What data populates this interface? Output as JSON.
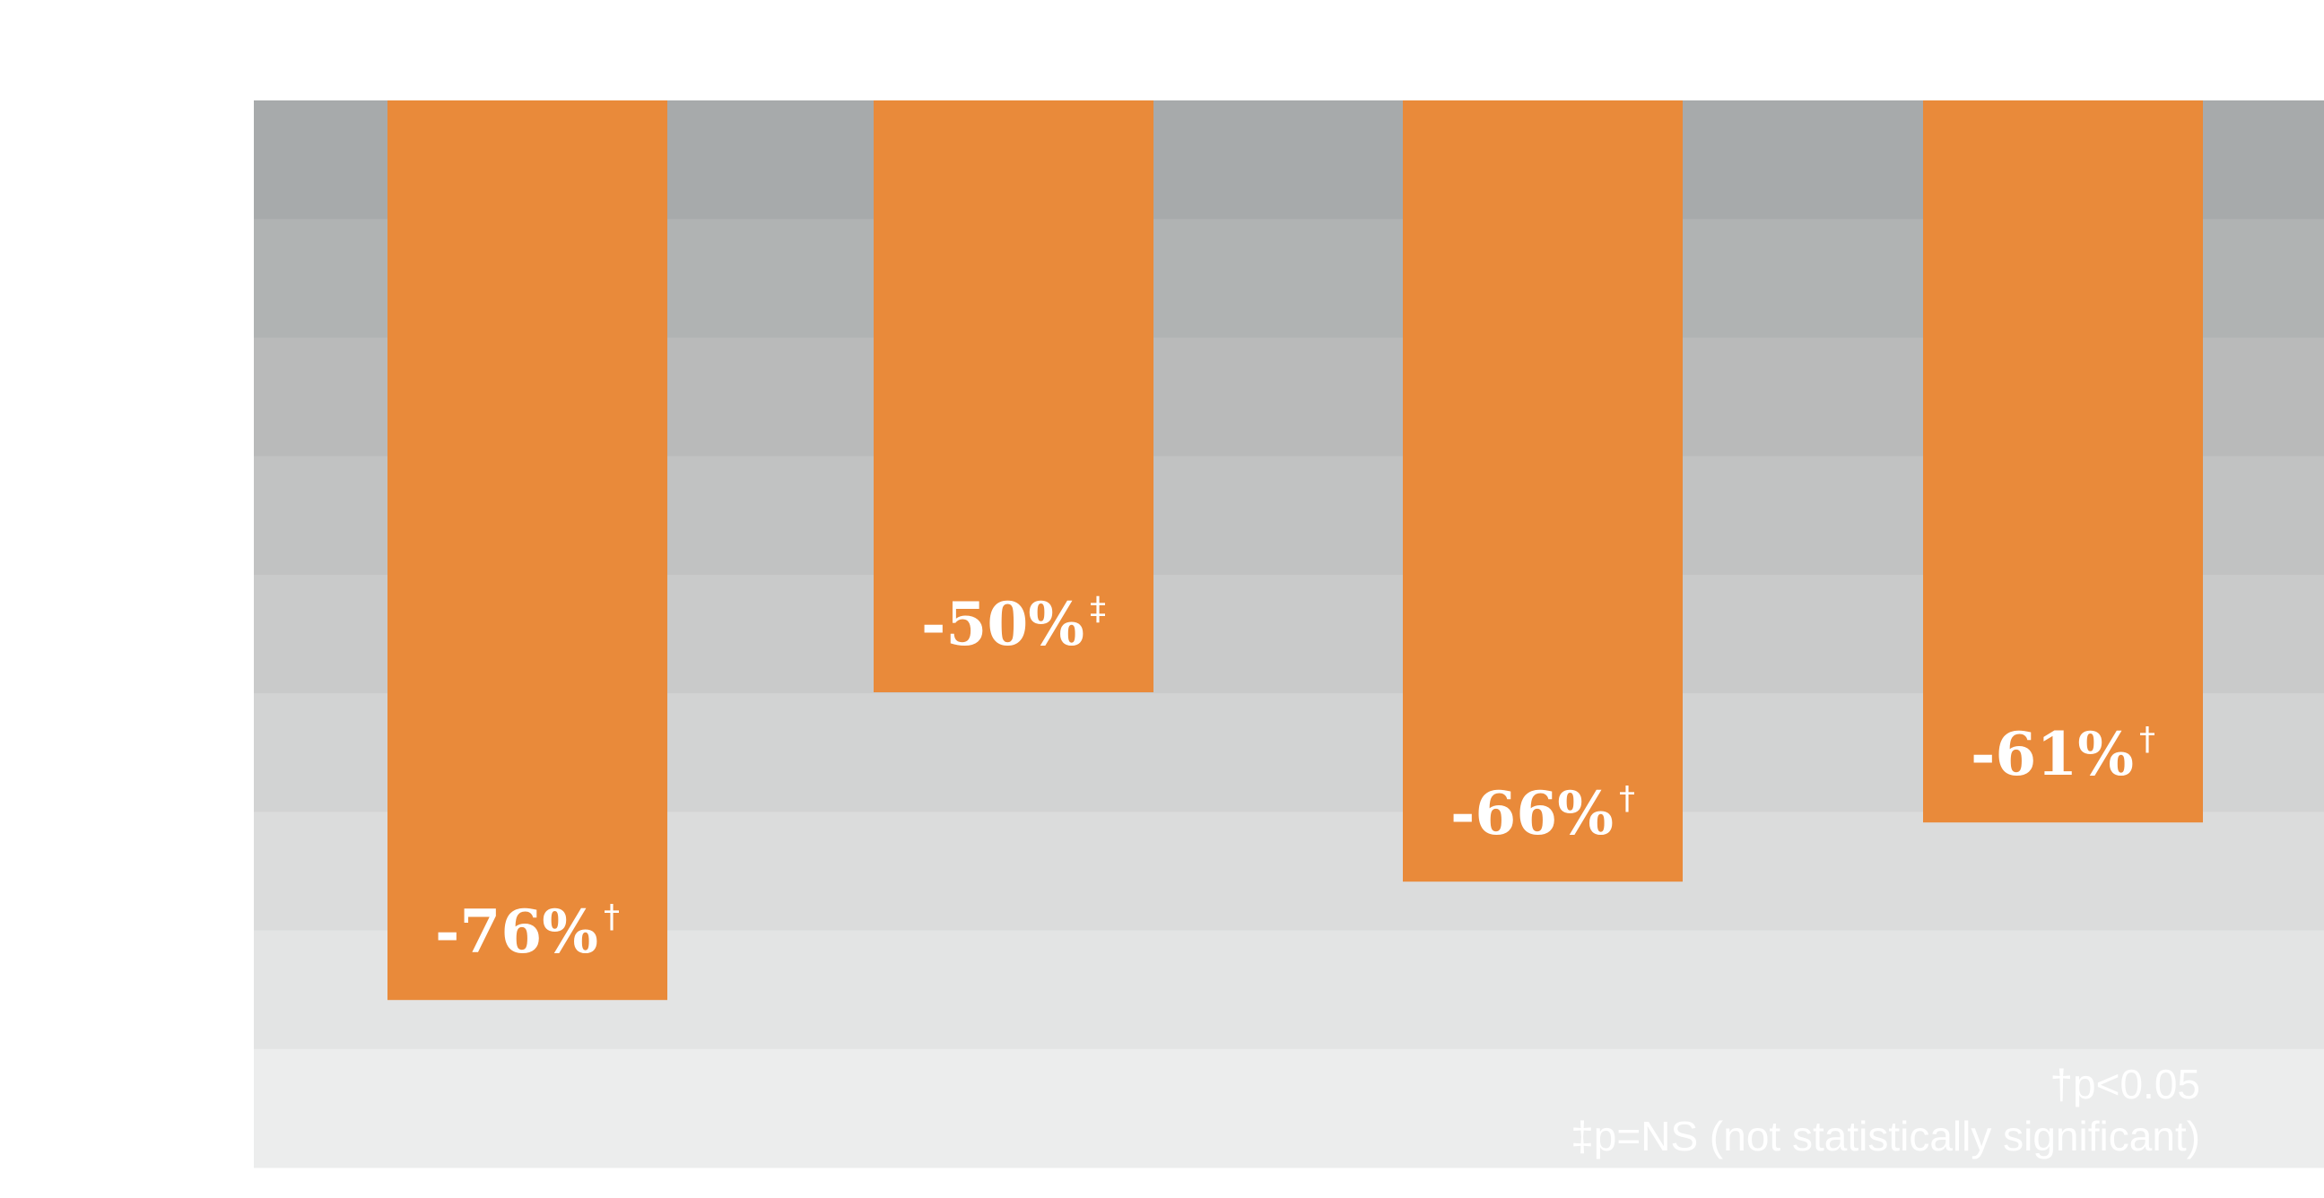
{
  "chart_data": {
    "type": "bar",
    "categories": [
      "",
      "",
      "",
      ""
    ],
    "values": [
      -76,
      -50,
      -66,
      -61
    ],
    "value_labels": [
      "-76%",
      "-50%",
      "-66%",
      "-61%"
    ],
    "significance_marks": [
      "†",
      "‡",
      "†",
      "†"
    ],
    "title": "",
    "xlabel": "",
    "ylabel": "",
    "ylim": [
      -90,
      0
    ],
    "grid": false,
    "bar_color": "#E98A3A",
    "background_bands": [
      "#A7AAAB",
      "#B0B3B3",
      "#B9BABA",
      "#C1C2C2",
      "#C9CACA",
      "#D2D3D3",
      "#DBDCDC",
      "#E3E4E4",
      "#ECEDED"
    ],
    "footnotes": [
      "†p<0.05",
      "‡p=NS (not statistically significant)"
    ]
  }
}
